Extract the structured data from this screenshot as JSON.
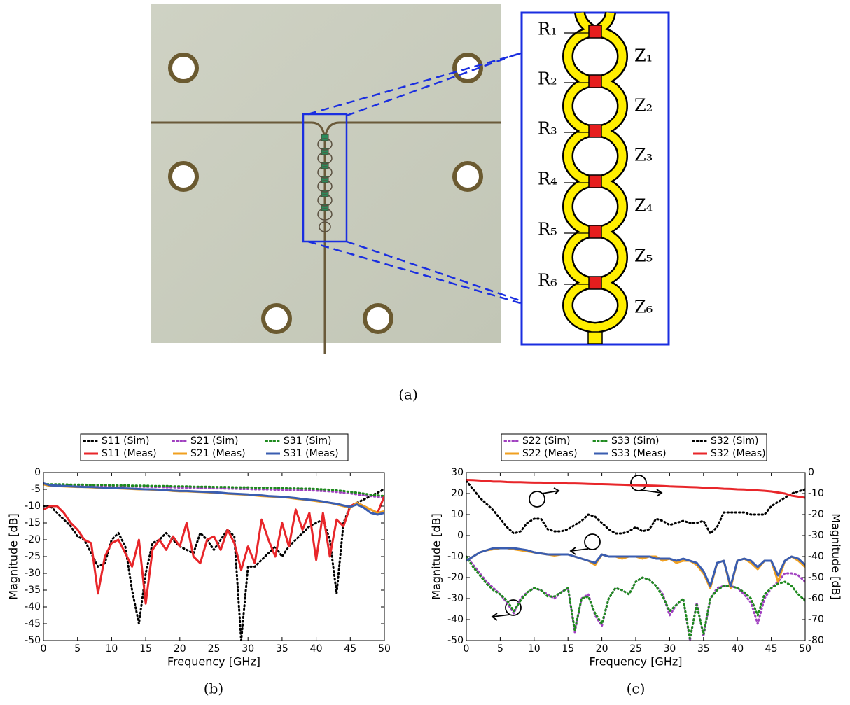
{
  "figure_a": {
    "resistor_labels": [
      "R₁",
      "R₂",
      "R₃",
      "R₄",
      "R₅",
      "R₆"
    ],
    "impedance_labels": [
      "Z₁",
      "Z₂",
      "Z₃",
      "Z₄",
      "Z₅",
      "Z₆"
    ],
    "caption": "(a)"
  },
  "chart_data": [
    {
      "type": "line",
      "caption": "(b)",
      "x_label": "Frequency [GHz]",
      "y_label": "Magnitude [dB]",
      "x": [
        0,
        1,
        2,
        3,
        4,
        5,
        6,
        7,
        8,
        9,
        10,
        11,
        12,
        13,
        14,
        15,
        16,
        17,
        18,
        19,
        20,
        21,
        22,
        23,
        24,
        25,
        26,
        27,
        28,
        29,
        30,
        31,
        32,
        33,
        34,
        35,
        36,
        37,
        38,
        39,
        40,
        41,
        42,
        43,
        44,
        45,
        46,
        47,
        48,
        49,
        50
      ],
      "xlim": [
        0,
        50
      ],
      "xticks": [
        0,
        5,
        10,
        15,
        20,
        25,
        30,
        35,
        40,
        45,
        50
      ],
      "ylim": [
        -50,
        0
      ],
      "yticks": [
        0,
        -5,
        -10,
        -15,
        -20,
        -25,
        -30,
        -35,
        -40,
        -45,
        -50
      ],
      "series": [
        {
          "name": "S11 (Sim)",
          "color": "#000000",
          "style": "dotted",
          "values": [
            -10,
            -10,
            -12,
            -14,
            -16,
            -19,
            -20,
            -24,
            -28,
            -27,
            -20,
            -18,
            -22,
            -35,
            -45,
            -30,
            -21,
            -20,
            -18,
            -20,
            -22,
            -23,
            -24,
            -18,
            -20,
            -23,
            -20,
            -17,
            -19,
            -50,
            -28,
            -28,
            -26,
            -24,
            -22,
            -25,
            -22,
            -20,
            -18,
            -16,
            -15,
            -14,
            -20,
            -36,
            -15,
            -10,
            -9,
            -8,
            -7,
            -6,
            -5
          ]
        },
        {
          "name": "S21 (Sim)",
          "color": "#a040c0",
          "style": "dotted",
          "values": [
            -3.5,
            -3.6,
            -3.6,
            -3.7,
            -3.7,
            -3.8,
            -3.8,
            -3.9,
            -3.9,
            -4,
            -4,
            -4,
            -4.1,
            -4.1,
            -4.2,
            -4.2,
            -4.3,
            -4.3,
            -4.4,
            -4.4,
            -4.5,
            -4.5,
            -4.5,
            -4.6,
            -4.6,
            -4.7,
            -4.7,
            -4.8,
            -4.8,
            -4.9,
            -4.9,
            -5,
            -5,
            -5,
            -5.1,
            -5.1,
            -5.2,
            -5.2,
            -5.3,
            -5.3,
            -5.4,
            -5.5,
            -5.6,
            -5.8,
            -6,
            -6.2,
            -6.5,
            -6.8,
            -7,
            -7.2,
            -7.5
          ]
        },
        {
          "name": "S31 (Sim)",
          "color": "#1e8a1e",
          "style": "dotted",
          "values": [
            -3.4,
            -3.5,
            -3.5,
            -3.5,
            -3.6,
            -3.6,
            -3.6,
            -3.7,
            -3.7,
            -3.7,
            -3.8,
            -3.8,
            -3.8,
            -3.9,
            -3.9,
            -3.9,
            -4,
            -4,
            -4,
            -4.1,
            -4.1,
            -4.1,
            -4.2,
            -4.2,
            -4.2,
            -4.3,
            -4.3,
            -4.3,
            -4.4,
            -4.4,
            -4.4,
            -4.5,
            -4.5,
            -4.5,
            -4.6,
            -4.6,
            -4.7,
            -4.7,
            -4.8,
            -4.8,
            -4.9,
            -5,
            -5.1,
            -5.3,
            -5.5,
            -5.8,
            -6,
            -6.3,
            -6.6,
            -6.8,
            -7
          ]
        },
        {
          "name": "S11 (Meas)",
          "color": "#e8262a",
          "style": "solid",
          "values": [
            -11,
            -10,
            -10,
            -12,
            -15,
            -17,
            -20,
            -21,
            -36,
            -25,
            -21,
            -20,
            -24,
            -28,
            -20,
            -39,
            -23,
            -20,
            -23,
            -19,
            -22,
            -15,
            -25,
            -27,
            -20,
            -19,
            -23,
            -17,
            -21,
            -29,
            -22,
            -27,
            -14,
            -20,
            -25,
            -15,
            -22,
            -11,
            -17,
            -12,
            -26,
            -12,
            -25,
            -14,
            -16,
            -10,
            -9,
            -10,
            -11,
            -12,
            -7
          ]
        },
        {
          "name": "S21 (Meas)",
          "color": "#f0a020",
          "style": "solid",
          "values": [
            -3.5,
            -4,
            -4,
            -4.1,
            -4.2,
            -4.3,
            -4.3,
            -4.4,
            -4.5,
            -4.6,
            -4.6,
            -4.7,
            -4.8,
            -4.9,
            -5,
            -5,
            -5.1,
            -5.2,
            -5.3,
            -5.5,
            -5.6,
            -5.6,
            -5.7,
            -5.8,
            -5.9,
            -6,
            -6.1,
            -6.3,
            -6.4,
            -6.5,
            -6.6,
            -6.8,
            -7,
            -7.1,
            -7.2,
            -7.3,
            -7.5,
            -7.8,
            -8,
            -8.2,
            -8.5,
            -8.8,
            -9,
            -9.5,
            -10,
            -10.5,
            -9,
            -10,
            -11,
            -12,
            -11.5
          ]
        },
        {
          "name": "S31 (Meas)",
          "color": "#3a5db0",
          "style": "solid",
          "values": [
            -3.2,
            -3.8,
            -3.9,
            -4,
            -4.1,
            -4.2,
            -4.3,
            -4.3,
            -4.4,
            -4.5,
            -4.6,
            -4.6,
            -4.7,
            -4.8,
            -4.9,
            -5,
            -5,
            -5.1,
            -5.2,
            -5.4,
            -5.5,
            -5.5,
            -5.6,
            -5.7,
            -5.8,
            -5.9,
            -6,
            -6.2,
            -6.3,
            -6.4,
            -6.5,
            -6.7,
            -6.8,
            -7,
            -7.1,
            -7.2,
            -7.4,
            -7.6,
            -7.9,
            -8.1,
            -8.3,
            -8.6,
            -9,
            -9.3,
            -9.8,
            -10.2,
            -9.5,
            -10.5,
            -12,
            -12.5,
            -12
          ]
        }
      ]
    },
    {
      "type": "line",
      "caption": "(c)",
      "x_label": "Frequency [GHz]",
      "y_label": "Magnitude [dB]",
      "y2_label": "Magnitude [dB]",
      "x": [
        0,
        1,
        2,
        3,
        4,
        5,
        6,
        7,
        8,
        9,
        10,
        11,
        12,
        13,
        14,
        15,
        16,
        17,
        18,
        19,
        20,
        21,
        22,
        23,
        24,
        25,
        26,
        27,
        28,
        29,
        30,
        31,
        32,
        33,
        34,
        35,
        36,
        37,
        38,
        39,
        40,
        41,
        42,
        43,
        44,
        45,
        46,
        47,
        48,
        49,
        50
      ],
      "xlim": [
        0,
        50
      ],
      "xticks": [
        0,
        5,
        10,
        15,
        20,
        25,
        30,
        35,
        40,
        45,
        50
      ],
      "ylim": [
        -50,
        30
      ],
      "yticks": [
        30,
        20,
        10,
        0,
        -10,
        -20,
        -30,
        -40,
        -50
      ],
      "y2lim": [
        -80,
        0
      ],
      "y2ticks": [
        0,
        -10,
        -20,
        -30,
        -40,
        -50,
        -60,
        -70,
        -80
      ],
      "series": [
        {
          "name": "S22 (Sim)",
          "color": "#a040c0",
          "style": "dotted",
          "values": [
            -10,
            -14,
            -18,
            -22,
            -25,
            -28,
            -32,
            -37,
            -30,
            -27,
            -25,
            -26,
            -28,
            -30,
            -27,
            -25,
            -46,
            -30,
            -28,
            -38,
            -43,
            -30,
            -25,
            -26,
            -28,
            -22,
            -20,
            -21,
            -24,
            -28,
            -38,
            -33,
            -30,
            -50,
            -32,
            -48,
            -30,
            -25,
            -24,
            -24,
            -25,
            -28,
            -32,
            -42,
            -30,
            -25,
            -22,
            -18,
            -18,
            -19,
            -22
          ]
        },
        {
          "name": "S33 (Sim)",
          "color": "#1e8a1e",
          "style": "dotted",
          "values": [
            -10,
            -15,
            -19,
            -23,
            -26,
            -28,
            -31,
            -36,
            -31,
            -27,
            -25,
            -26,
            -29,
            -29,
            -27,
            -25,
            -45,
            -30,
            -29,
            -37,
            -42,
            -30,
            -25,
            -26,
            -28,
            -22,
            -20,
            -21,
            -24,
            -29,
            -36,
            -33,
            -30,
            -49,
            -33,
            -47,
            -30,
            -26,
            -24,
            -24,
            -25,
            -27,
            -30,
            -38,
            -28,
            -25,
            -23,
            -22,
            -24,
            -28,
            -31
          ]
        },
        {
          "name": "S32 (Sim)",
          "color": "#000000",
          "style": "dotted",
          "axis": "y2",
          "values": [
            -4,
            -8,
            -12,
            -15,
            -18,
            -22,
            -26,
            -29,
            -28,
            -24,
            -22,
            -22,
            -27,
            -28,
            -28,
            -27,
            -25,
            -23,
            -20,
            -21,
            -24,
            -27,
            -29,
            -29,
            -28,
            -26,
            -28,
            -27,
            -22,
            -23,
            -25,
            -24,
            -23,
            -24,
            -24,
            -23,
            -29,
            -26,
            -19,
            -19,
            -19,
            -19,
            -20,
            -20,
            -20,
            -16,
            -14,
            -12,
            -10,
            -9,
            -8
          ]
        },
        {
          "name": "S22 (Meas)",
          "color": "#f0a020",
          "style": "solid",
          "values": [
            -12,
            -10,
            -8,
            -7,
            -6.5,
            -6,
            -6,
            -6.5,
            -7,
            -7.5,
            -8,
            -8.5,
            -9,
            -9.5,
            -9,
            -9,
            -10,
            -11,
            -12,
            -14,
            -9,
            -10,
            -10,
            -11,
            -10,
            -10,
            -11,
            -10,
            -10,
            -12,
            -11,
            -13,
            -12,
            -12,
            -14,
            -18,
            -25,
            -13,
            -12,
            -25,
            -12,
            -11,
            -13,
            -16,
            -12,
            -12,
            -22,
            -12,
            -10,
            -12,
            -15
          ]
        },
        {
          "name": "S33 (Meas)",
          "color": "#3a5db0",
          "style": "solid",
          "values": [
            -12,
            -10,
            -8,
            -7,
            -6,
            -6,
            -6,
            -6,
            -6.5,
            -7,
            -8,
            -8.5,
            -9,
            -9,
            -9,
            -9,
            -10,
            -11,
            -12,
            -13,
            -9,
            -10,
            -10,
            -10,
            -10,
            -10,
            -10,
            -10,
            -11,
            -11,
            -11,
            -12,
            -11,
            -12,
            -13,
            -17,
            -24,
            -13,
            -12,
            -24,
            -12,
            -11,
            -12,
            -15,
            -12,
            -12,
            -19,
            -12,
            -10,
            -11,
            -14
          ]
        },
        {
          "name": "S32 (Meas)",
          "color": "#e8262a",
          "style": "solid",
          "axis": "y2",
          "values": [
            -3.5,
            -3.6,
            -3.8,
            -4,
            -4.3,
            -4.3,
            -4.5,
            -4.6,
            -4.6,
            -4.7,
            -4.8,
            -4.8,
            -4.9,
            -5,
            -5,
            -5.2,
            -5.2,
            -5.3,
            -5.4,
            -5.5,
            -5.5,
            -5.6,
            -5.7,
            -5.8,
            -5.9,
            -6,
            -6.1,
            -6.2,
            -6.3,
            -6.4,
            -6.6,
            -6.7,
            -6.8,
            -6.9,
            -7,
            -7.2,
            -7.5,
            -7.5,
            -7.7,
            -7.8,
            -8,
            -8.1,
            -8.3,
            -8.5,
            -8.7,
            -9,
            -9.5,
            -10,
            -11,
            -11.5,
            -12
          ]
        }
      ]
    }
  ]
}
